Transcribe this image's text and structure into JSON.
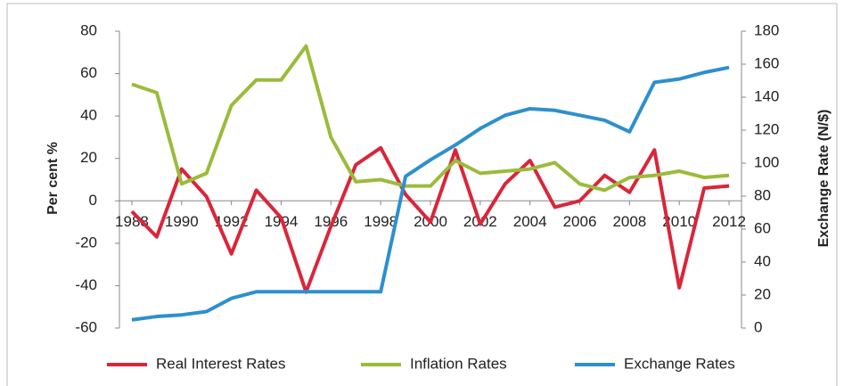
{
  "chart_data": {
    "type": "line",
    "x": [
      1988,
      1989,
      1990,
      1991,
      1992,
      1993,
      1994,
      1995,
      1996,
      1997,
      1998,
      1999,
      2000,
      2001,
      2002,
      2003,
      2004,
      2005,
      2006,
      2007,
      2008,
      2009,
      2010,
      2011,
      2012
    ],
    "xlim": [
      1987.5,
      2012.5
    ],
    "xticks": [
      1988,
      1990,
      1992,
      1994,
      1996,
      1998,
      2000,
      2002,
      2004,
      2006,
      2008,
      2010,
      2012
    ],
    "ylabel": "Per cent %",
    "y2label": "Exchange Rate (N/$)",
    "ylim": [
      -60,
      80
    ],
    "yticks": [
      -60,
      -40,
      -20,
      0,
      20,
      40,
      60,
      80
    ],
    "y2lim": [
      0,
      180
    ],
    "y2ticks": [
      0,
      20,
      40,
      60,
      80,
      100,
      120,
      140,
      160,
      180
    ],
    "legend": "bottom",
    "series": [
      {
        "name": "Real Interest Rates",
        "color": "#d9263a",
        "values": [
          -5,
          -17,
          15,
          2,
          -25,
          5,
          -8,
          -43,
          -12,
          17,
          25,
          3,
          -10,
          24,
          -11,
          8,
          19,
          -3,
          0,
          12,
          4,
          24,
          -41,
          6,
          7
        ]
      },
      {
        "name": "Inflation Rates",
        "color": "#9bbb3b",
        "values": [
          55,
          51,
          8,
          13,
          45,
          57,
          57,
          73,
          30,
          9,
          10,
          7,
          7,
          19,
          13,
          14,
          15,
          18,
          8,
          5,
          11,
          12,
          14,
          11,
          12
        ]
      },
      {
        "name": "Exchange Rates",
        "color": "#2e8fce",
        "axis": "y2",
        "values": [
          5,
          7,
          8,
          10,
          18,
          22,
          22,
          22,
          22,
          22,
          22,
          92,
          102,
          111,
          121,
          129,
          133,
          132,
          129,
          126,
          119,
          149,
          151,
          155,
          158
        ]
      }
    ]
  }
}
